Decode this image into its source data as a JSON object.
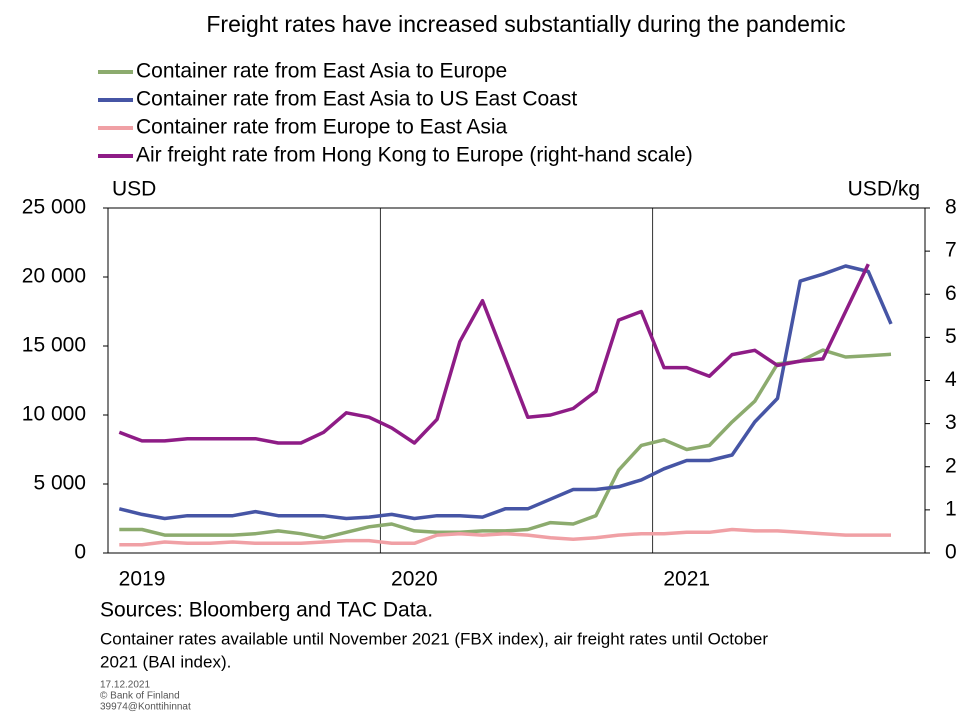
{
  "chart_data": {
    "type": "line",
    "title": "Freight rates have increased substantially during the pandemic",
    "y_label": "USD",
    "y2_label": "USD/kg",
    "categories": [
      null,
      "2019",
      null,
      null,
      null,
      null,
      null,
      null,
      null,
      null,
      null,
      null,
      null,
      "2020",
      null,
      null,
      null,
      null,
      null,
      null,
      null,
      null,
      null,
      null,
      null,
      "2021",
      null,
      null,
      null,
      null,
      null,
      null,
      null,
      null,
      null,
      null
    ],
    "ylim": [
      0,
      25000
    ],
    "yticks": [
      0,
      {
        "value": 5000,
        "label": "5 000"
      },
      {
        "value": 10000,
        "label": "10 000"
      },
      {
        "value": 15000,
        "label": "15 000"
      },
      {
        "value": 20000,
        "label": "20 000"
      },
      {
        "value": 25000,
        "label": "25 000"
      }
    ],
    "y2lim": [
      0,
      8
    ],
    "y2ticks": [
      0,
      1,
      2,
      3,
      4,
      5,
      6,
      7,
      8
    ],
    "grid": true,
    "series": [
      {
        "name": "Container rate from East Asia to Europe",
        "color": "#8cab6e",
        "values": [
          1700,
          1700,
          1300,
          1300,
          1300,
          1300,
          1400,
          1600,
          1400,
          1100,
          1500,
          1900,
          2100,
          1600,
          1500,
          1500,
          1600,
          1600,
          1700,
          2200,
          2100,
          2700,
          6000,
          7800,
          8200,
          7500,
          7800,
          9500,
          11000,
          13700,
          13900,
          14700,
          14200,
          14300,
          14400,
          null
        ]
      },
      {
        "name": "Container rate from East Asia to US East Coast",
        "color": "#4655a5",
        "values": [
          3200,
          2800,
          2500,
          2700,
          2700,
          2700,
          3000,
          2700,
          2700,
          2700,
          2500,
          2600,
          2800,
          2500,
          2700,
          2700,
          2600,
          3200,
          3200,
          3900,
          4600,
          4600,
          4800,
          5300,
          6100,
          6700,
          6700,
          7100,
          9500,
          11200,
          19700,
          20200,
          20800,
          20400,
          16600,
          null
        ]
      },
      {
        "name": "Container rate from Europe to East Asia",
        "color": "#f0a0a5",
        "values": [
          600,
          600,
          800,
          700,
          700,
          800,
          700,
          700,
          700,
          800,
          900,
          900,
          700,
          700,
          1300,
          1400,
          1300,
          1400,
          1300,
          1100,
          1000,
          1100,
          1300,
          1400,
          1400,
          1500,
          1500,
          1700,
          1600,
          1600,
          1500,
          1400,
          1300,
          1300,
          1300,
          null
        ]
      },
      {
        "name": "Air freight rate from Hong Kong to Europe (right-hand scale)",
        "color": "#8e1c86",
        "axis": "y2",
        "values": [
          2.8,
          2.6,
          2.6,
          2.65,
          2.65,
          2.65,
          2.65,
          2.55,
          2.55,
          2.8,
          3.25,
          3.15,
          2.9,
          2.55,
          3.1,
          4.9,
          5.85,
          4.5,
          3.15,
          3.2,
          3.35,
          3.75,
          5.4,
          5.6,
          4.3,
          4.3,
          4.1,
          4.6,
          4.7,
          4.35,
          4.45,
          4.5,
          5.6,
          6.7,
          null,
          null
        ]
      }
    ],
    "source": "Sources: Bloomberg and TAC Data.",
    "note_lines": [
      "Container rates available until November 2021 (FBX index), air freight rates until October",
      "2021 (BAI index)."
    ],
    "stamp_lines": [
      "17.12.2021",
      "© Bank of Finland",
      "39974@Konttihinnat"
    ]
  }
}
